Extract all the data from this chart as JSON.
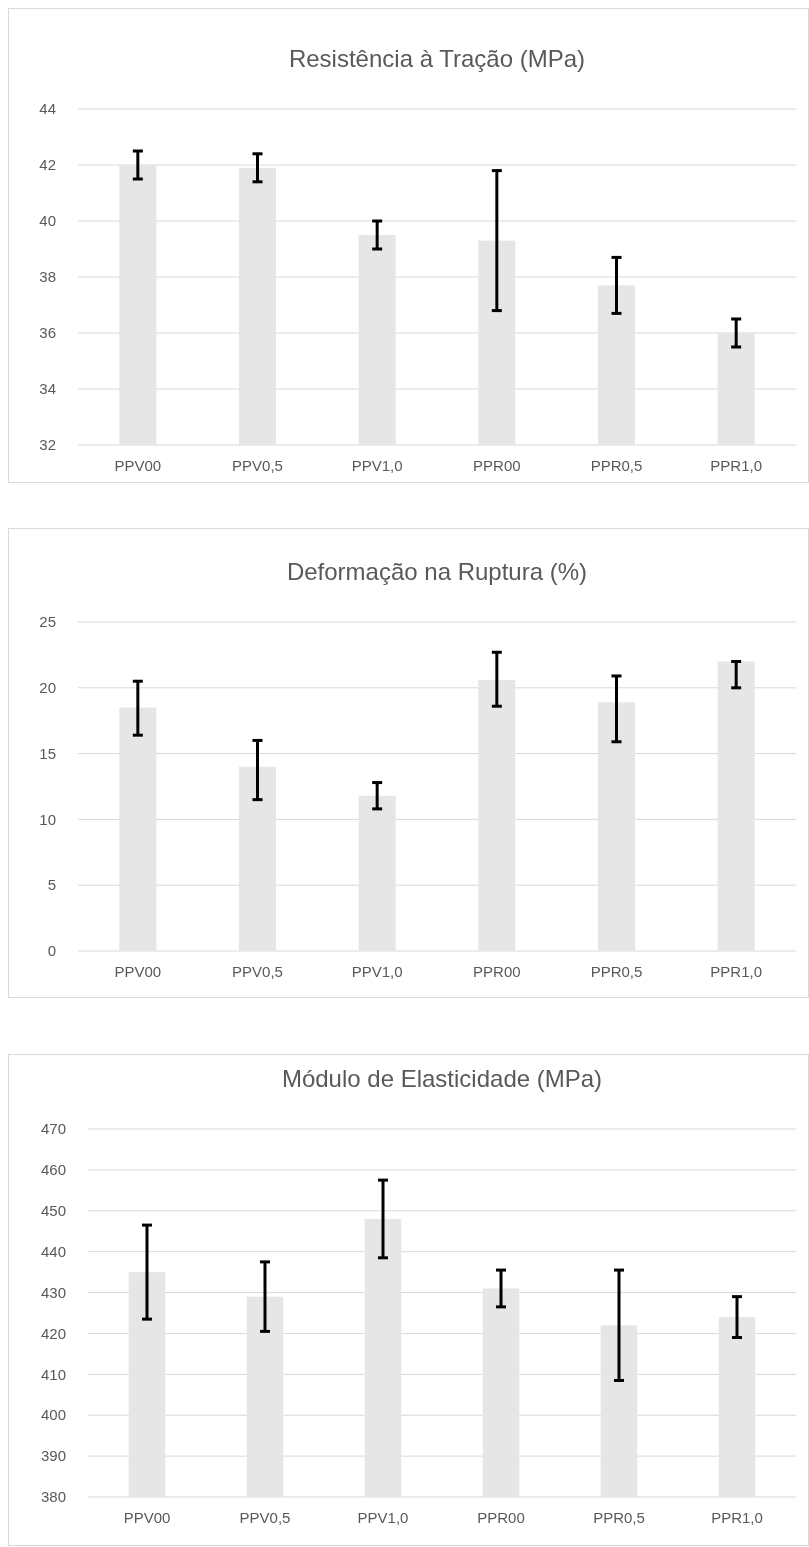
{
  "chart_data": [
    {
      "type": "bar",
      "title": "Resistência à Tração (MPa)",
      "categories": [
        "PPV00",
        "PPV0,5",
        "PPV1,0",
        "PPR00",
        "PPR0,5",
        "PPR1,0"
      ],
      "values": [
        42.0,
        41.9,
        39.5,
        39.3,
        37.7,
        36.0
      ],
      "errors": [
        0.5,
        0.5,
        0.5,
        [
          36.8,
          41.8
        ],
        1.0,
        0.5
      ],
      "color": "#e7e6e6",
      "ylim": [
        32,
        44
      ],
      "yticks": [
        32,
        34,
        36,
        38,
        40,
        42,
        44
      ],
      "grid": "y"
    },
    {
      "type": "bar",
      "title": "Deformação na Ruptura (%)",
      "categories": [
        "PPV00",
        "PPV0,5",
        "PPV1,0",
        "PPR00",
        "PPR0,5",
        "PPR1,0"
      ],
      "values": [
        18.5,
        14.0,
        11.8,
        20.6,
        18.9,
        22.0
      ],
      "errors": [
        [
          16.4,
          20.5
        ],
        [
          11.5,
          16.0
        ],
        1.0,
        [
          18.6,
          22.7
        ],
        [
          15.9,
          20.9
        ],
        [
          20.0,
          22.0
        ]
      ],
      "color": "#e7e6e6",
      "ylim": [
        0,
        25
      ],
      "yticks": [
        0,
        5,
        10,
        15,
        20,
        25
      ],
      "grid": "y"
    },
    {
      "type": "bar",
      "title": "Módulo de Elasticidade (MPa)",
      "categories": [
        "PPV00",
        "PPV0,5",
        "PPV1,0",
        "PPR00",
        "PPR0,5",
        "PPR1,0"
      ],
      "values": [
        435,
        429,
        448,
        431,
        422,
        424
      ],
      "errors": [
        [
          423.5,
          446.5
        ],
        [
          420.5,
          437.5
        ],
        [
          438.5,
          457.5
        ],
        [
          426.5,
          435.5
        ],
        [
          408.5,
          435.5
        ],
        5
      ],
      "color": "#e7e6e6",
      "ylim": [
        380,
        470
      ],
      "yticks": [
        380,
        390,
        400,
        410,
        420,
        430,
        440,
        450,
        460,
        470
      ],
      "grid": "y"
    }
  ]
}
